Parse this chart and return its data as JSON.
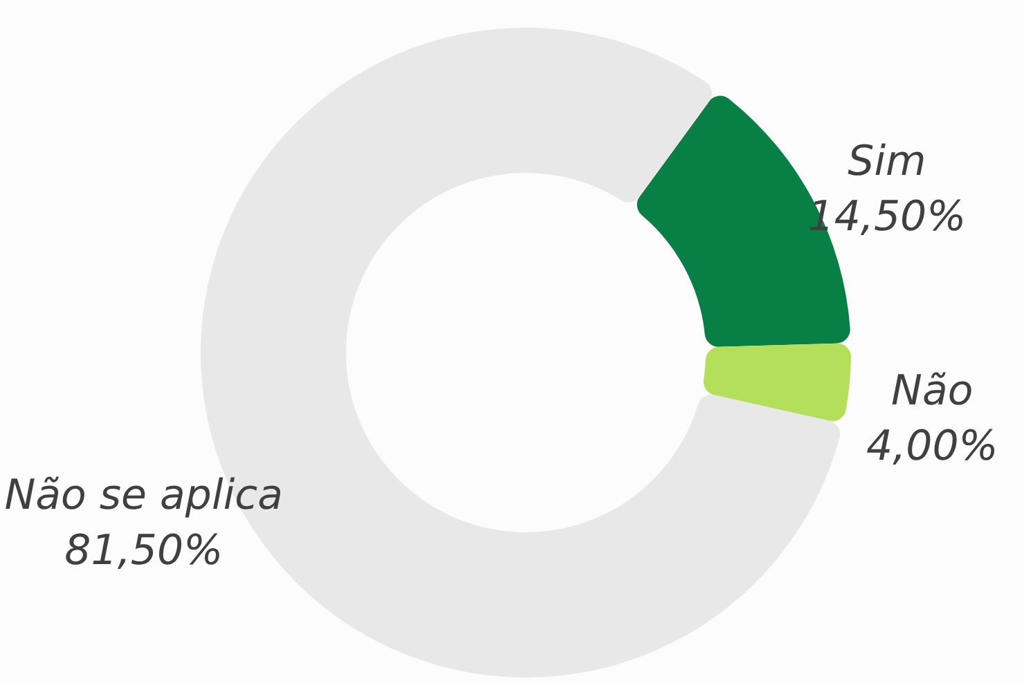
{
  "chart_data": {
    "type": "donut",
    "categories": [
      "Sim",
      "Não",
      "Não se aplica"
    ],
    "values": [
      14.5,
      4.0,
      81.5
    ],
    "value_labels": [
      "14,50%",
      "4,00%",
      "81,50%"
    ],
    "colors": [
      "#077f45",
      "#b3df5a",
      "#e8e8e8"
    ]
  }
}
